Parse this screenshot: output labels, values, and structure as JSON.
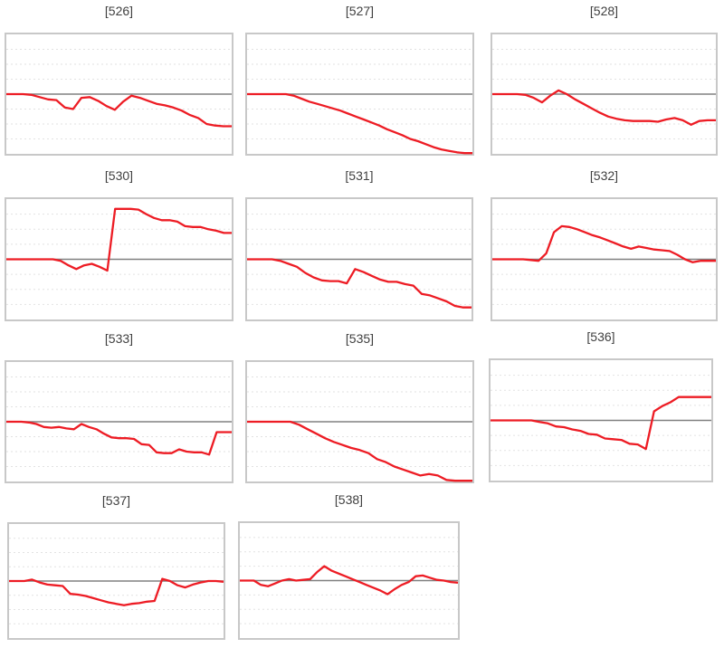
{
  "page": {
    "title": "Sparkline grid",
    "background": "#ffffff"
  },
  "colors": {
    "series_line": "#ed1c24",
    "zero_line": "#808080",
    "frame_border": "#c8c8c8",
    "gridline": "#e2e2e2",
    "title_text": "#3f3f3f"
  },
  "chart_data": [
    {
      "type": "line",
      "label": "[526]",
      "title": "[526]",
      "ylabel": "",
      "xlabel": "",
      "ylim": [
        -4,
        4
      ],
      "grid": "horizontal-dotted",
      "zero_line": true,
      "legend": "none",
      "units": "eighths of chart height relative to zero axis",
      "values": [
        0,
        0,
        0,
        -0.05,
        -0.2,
        -0.35,
        -0.4,
        -0.9,
        -1.0,
        -0.25,
        -0.2,
        -0.45,
        -0.8,
        -1.05,
        -0.5,
        -0.1,
        -0.25,
        -0.45,
        -0.65,
        -0.75,
        -0.9,
        -1.1,
        -1.4,
        -1.6,
        -2.0,
        -2.1,
        -2.15,
        -2.15
      ]
    },
    {
      "type": "line",
      "label": "[527]",
      "title": "[527]",
      "ylabel": "",
      "xlabel": "",
      "ylim": [
        -4,
        4
      ],
      "grid": "horizontal-dotted",
      "zero_line": true,
      "legend": "none",
      "units": "eighths of chart height relative to zero axis",
      "values": [
        0,
        0,
        0,
        0,
        0,
        0,
        -0.1,
        -0.3,
        -0.5,
        -0.65,
        -0.8,
        -0.95,
        -1.1,
        -1.3,
        -1.5,
        -1.7,
        -1.9,
        -2.1,
        -2.35,
        -2.55,
        -2.75,
        -3.0,
        -3.15,
        -3.35,
        -3.55,
        -3.7,
        -3.8,
        -3.9,
        -3.95,
        -3.95
      ]
    },
    {
      "type": "line",
      "label": "[528]",
      "title": "[528]",
      "ylabel": "",
      "xlabel": "",
      "ylim": [
        -4,
        4
      ],
      "grid": "horizontal-dotted",
      "zero_line": true,
      "legend": "none",
      "units": "eighths of chart height relative to zero axis",
      "values": [
        0,
        0,
        0,
        0,
        -0.05,
        -0.25,
        -0.55,
        -0.1,
        0.25,
        0,
        -0.35,
        -0.65,
        -0.95,
        -1.25,
        -1.5,
        -1.65,
        -1.75,
        -1.8,
        -1.8,
        -1.8,
        -1.85,
        -1.7,
        -1.6,
        -1.75,
        -2.05,
        -1.8,
        -1.75,
        -1.75
      ]
    },
    {
      "type": "line",
      "label": "[530]",
      "title": "[530]",
      "ylabel": "",
      "xlabel": "",
      "ylim": [
        -4,
        4
      ],
      "grid": "horizontal-dotted",
      "zero_line": true,
      "legend": "none",
      "units": "eighths of chart height relative to zero axis",
      "values": [
        0,
        0,
        0,
        0,
        0,
        0,
        0,
        -0.1,
        -0.4,
        -0.65,
        -0.4,
        -0.3,
        -0.5,
        -0.75,
        3.35,
        3.35,
        3.35,
        3.3,
        3.0,
        2.75,
        2.6,
        2.6,
        2.5,
        2.2,
        2.15,
        2.15,
        2.0,
        1.9,
        1.75,
        1.75
      ]
    },
    {
      "type": "line",
      "label": "[531]",
      "title": "[531]",
      "ylabel": "",
      "xlabel": "",
      "ylim": [
        -4,
        4
      ],
      "grid": "horizontal-dotted",
      "zero_line": true,
      "legend": "none",
      "units": "eighths of chart height relative to zero axis",
      "values": [
        0,
        0,
        0,
        0,
        -0.1,
        -0.3,
        -0.5,
        -0.9,
        -1.2,
        -1.4,
        -1.45,
        -1.45,
        -1.6,
        -0.65,
        -0.85,
        -1.1,
        -1.35,
        -1.5,
        -1.5,
        -1.65,
        -1.75,
        -2.3,
        -2.4,
        -2.6,
        -2.8,
        -3.1,
        -3.2,
        -3.2
      ]
    },
    {
      "type": "line",
      "label": "[532]",
      "title": "[532]",
      "ylabel": "",
      "xlabel": "",
      "ylim": [
        -4,
        4
      ],
      "grid": "horizontal-dotted",
      "zero_line": true,
      "legend": "none",
      "units": "eighths of chart height relative to zero axis",
      "values": [
        0,
        0,
        0,
        0,
        0,
        -0.05,
        -0.1,
        0.4,
        1.8,
        2.2,
        2.15,
        2.0,
        1.8,
        1.6,
        1.45,
        1.25,
        1.05,
        0.85,
        0.7,
        0.85,
        0.75,
        0.65,
        0.6,
        0.55,
        0.3,
        0,
        -0.2,
        -0.1,
        -0.1,
        -0.1
      ]
    },
    {
      "type": "line",
      "label": "[533]",
      "title": "[533]",
      "ylabel": "",
      "xlabel": "",
      "ylim": [
        -4,
        4
      ],
      "grid": "horizontal-dotted",
      "zero_line": true,
      "legend": "none",
      "units": "eighths of chart height relative to zero axis",
      "values": [
        0,
        0,
        0,
        -0.05,
        -0.15,
        -0.35,
        -0.4,
        -0.35,
        -0.45,
        -0.5,
        -0.15,
        -0.35,
        -0.5,
        -0.8,
        -1.05,
        -1.1,
        -1.1,
        -1.15,
        -1.5,
        -1.55,
        -2.05,
        -2.1,
        -2.1,
        -1.85,
        -2.0,
        -2.05,
        -2.05,
        -2.2,
        -0.7,
        -0.7,
        -0.7
      ]
    },
    {
      "type": "line",
      "label": "[535]",
      "title": "[535]",
      "ylabel": "",
      "xlabel": "",
      "ylim": [
        -4,
        4
      ],
      "grid": "horizontal-dotted",
      "zero_line": true,
      "legend": "none",
      "units": "eighths of chart height relative to zero axis",
      "values": [
        0,
        0,
        0,
        0,
        0,
        0,
        -0.2,
        -0.5,
        -0.8,
        -1.1,
        -1.35,
        -1.55,
        -1.75,
        -1.9,
        -2.1,
        -2.5,
        -2.7,
        -3.0,
        -3.2,
        -3.4,
        -3.6,
        -3.5,
        -3.6,
        -3.9,
        -3.95,
        -3.95,
        -3.95
      ]
    },
    {
      "type": "line",
      "label": "[536]",
      "title": "[536]",
      "ylabel": "",
      "xlabel": "",
      "ylim": [
        -4,
        4
      ],
      "grid": "horizontal-dotted",
      "zero_line": true,
      "legend": "none",
      "units": "eighths of chart height relative to zero axis",
      "values": [
        0,
        0,
        0,
        0,
        0,
        0,
        -0.1,
        -0.2,
        -0.4,
        -0.45,
        -0.6,
        -0.7,
        -0.9,
        -0.95,
        -1.2,
        -1.25,
        -1.3,
        -1.55,
        -1.6,
        -1.9,
        0.6,
        0.95,
        1.2,
        1.55,
        1.55,
        1.55,
        1.55,
        1.55
      ]
    },
    {
      "type": "line",
      "label": "[537]",
      "title": "[537]",
      "ylabel": "",
      "xlabel": "",
      "ylim": [
        -4,
        4
      ],
      "grid": "horizontal-dotted",
      "zero_line": true,
      "legend": "none",
      "units": "eighths of chart height relative to zero axis",
      "values": [
        0,
        0,
        0,
        0.1,
        -0.1,
        -0.25,
        -0.3,
        -0.35,
        -0.9,
        -0.95,
        -1.05,
        -1.2,
        -1.35,
        -1.5,
        -1.6,
        -1.7,
        -1.6,
        -1.55,
        -1.45,
        -1.4,
        0.15,
        0,
        -0.3,
        -0.45,
        -0.25,
        -0.1,
        0,
        0,
        -0.05
      ]
    },
    {
      "type": "line",
      "label": "[538]",
      "title": "[538]",
      "ylabel": "",
      "xlabel": "",
      "ylim": [
        -4,
        4
      ],
      "grid": "horizontal-dotted",
      "zero_line": true,
      "legend": "none",
      "units": "eighths of chart height relative to zero axis",
      "values": [
        0,
        0,
        0,
        -0.3,
        -0.4,
        -0.2,
        0,
        0.1,
        0,
        0.05,
        0.1,
        0.6,
        1.0,
        0.7,
        0.5,
        0.3,
        0.1,
        -0.1,
        -0.3,
        -0.5,
        -0.7,
        -0.95,
        -0.6,
        -0.3,
        -0.1,
        0.3,
        0.35,
        0.2,
        0.05,
        0,
        -0.1,
        -0.15
      ]
    }
  ]
}
